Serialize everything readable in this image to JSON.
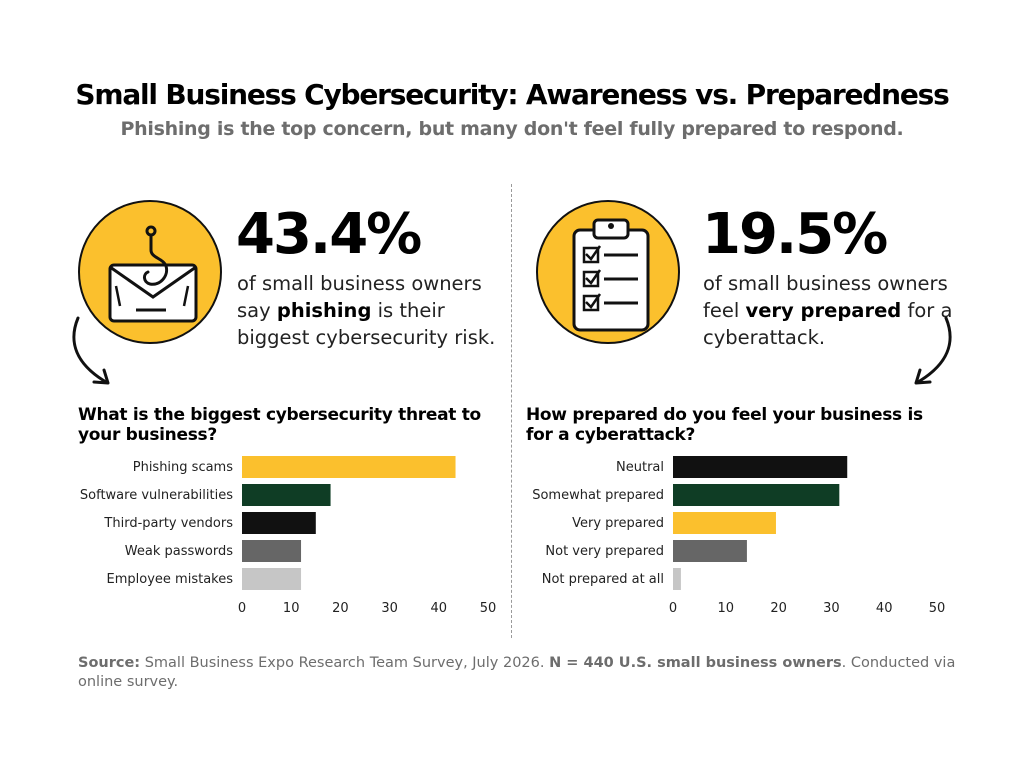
{
  "title": "Small Business Cybersecurity: Awareness vs. Preparedness",
  "subtitle": "Phishing is the top concern, but many don't feel fully prepared to respond.",
  "left_stat": {
    "value": "43.4%",
    "line1": "of small business owners",
    "line2_pre": "say ",
    "line2_bold": "phishing",
    "line2_post": " is their",
    "line3": "biggest cybersecurity risk.",
    "icon": "phishing-envelope-icon"
  },
  "right_stat": {
    "value": "19.5%",
    "line1": "of small business owners",
    "line2_pre": "feel ",
    "line2_bold": "very prepared",
    "line2_post": " for a",
    "line3": "cyberattack.",
    "icon": "checklist-clipboard-icon"
  },
  "colors": {
    "yellow": "#fbc02d",
    "dark_green": "#0f3d25",
    "black": "#111111",
    "dark_gray": "#666666",
    "light_gray": "#c6c6c6"
  },
  "chart_data": [
    {
      "type": "bar",
      "orientation": "horizontal",
      "title": "What is the biggest cybersecurity threat to your business?",
      "categories": [
        "Phishing scams",
        "Software vulnerabilities",
        "Third-party vendors",
        "Weak passwords",
        "Employee mistakes"
      ],
      "values": [
        43.4,
        18,
        15,
        12,
        12
      ],
      "colors": [
        "#fbc02d",
        "#0f3d25",
        "#111111",
        "#666666",
        "#c6c6c6"
      ],
      "xlim": [
        0,
        50
      ],
      "xticks": [
        0,
        10,
        20,
        30,
        40,
        50
      ],
      "grid": false
    },
    {
      "type": "bar",
      "orientation": "horizontal",
      "title": "How prepared do you feel your business is for a cyberattack?",
      "categories": [
        "Neutral",
        "Somewhat prepared",
        "Very prepared",
        "Not very prepared",
        "Not prepared at all"
      ],
      "values": [
        33,
        31.5,
        19.5,
        14,
        1.5
      ],
      "colors": [
        "#111111",
        "#0f3d25",
        "#fbc02d",
        "#666666",
        "#c6c6c6"
      ],
      "xlim": [
        0,
        50
      ],
      "xticks": [
        0,
        10,
        20,
        30,
        40,
        50
      ],
      "grid": false
    }
  ],
  "source": {
    "label": "Source:",
    "text": " Small Business Expo Research Team Survey, July 2026. ",
    "sample": "N = 440 U.S. small business owners",
    "tail": ". Conducted via online survey."
  }
}
